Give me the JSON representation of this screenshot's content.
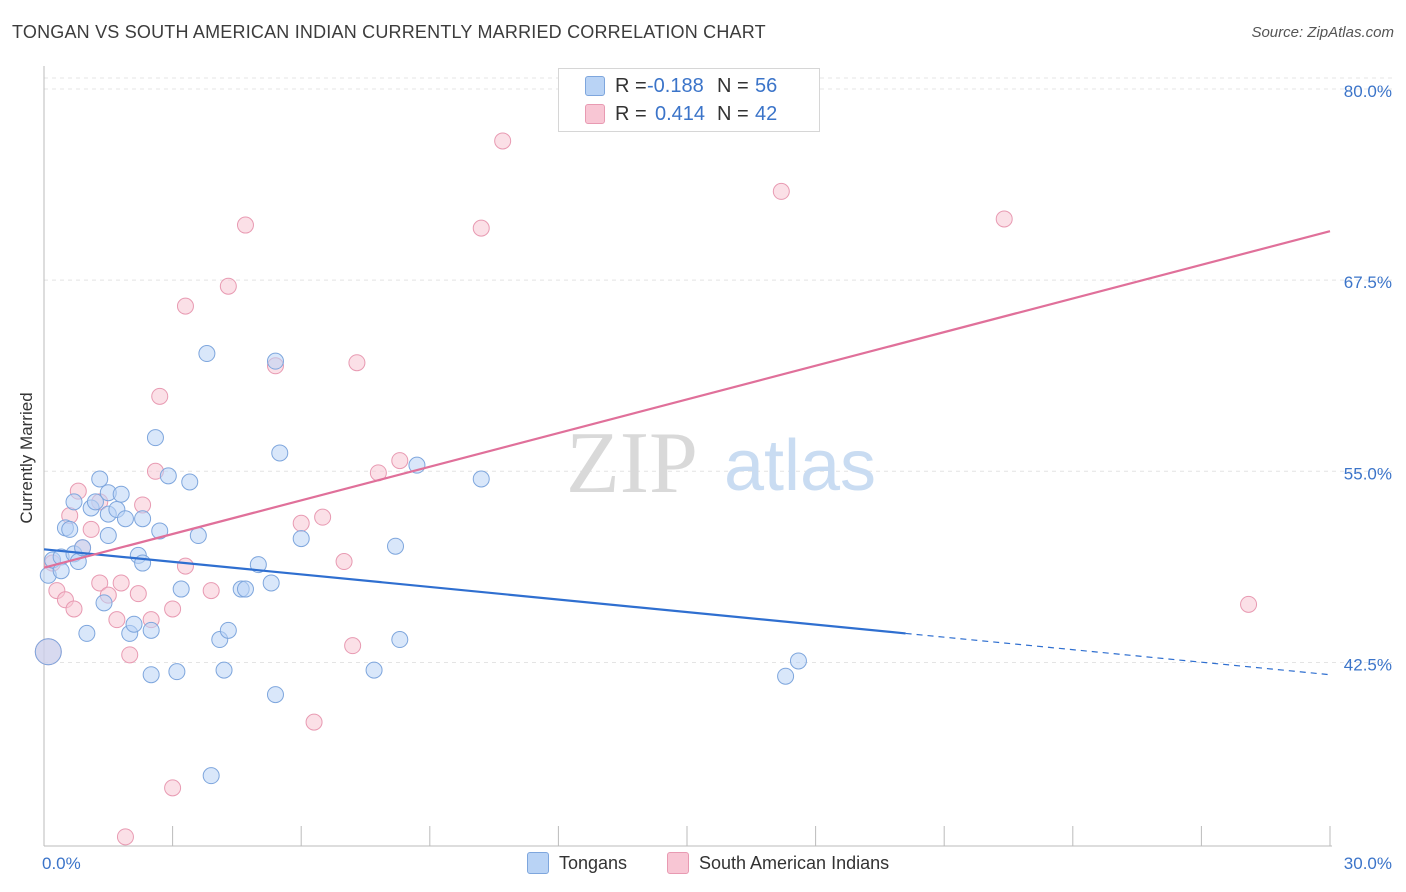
{
  "title": "TONGAN VS SOUTH AMERICAN INDIAN CURRENTLY MARRIED CORRELATION CHART",
  "source": "Source: ZipAtlas.com",
  "watermark": {
    "zip": "ZIP",
    "atlas": "atlas"
  },
  "legend": {
    "tongans": {
      "r_label": "R =",
      "r_value": "-0.188",
      "n_label": "N =",
      "n_value": "56"
    },
    "south_american": {
      "r_label": "R =",
      "r_value": "0.414",
      "n_label": "N =",
      "n_value": "42"
    }
  },
  "colors": {
    "blue_fill": "#b9d3f5",
    "blue_stroke": "#7ea6dd",
    "blue_line": "#2f6fd0",
    "pink_fill": "#f8c6d4",
    "pink_stroke": "#e89ab2",
    "pink_line": "#e0709a",
    "axis_text": "#3b74c9",
    "grid": "#e4e4e4"
  },
  "chart_data": {
    "type": "scatter",
    "title": "TONGAN VS SOUTH AMERICAN INDIAN CURRENTLY MARRIED CORRELATION CHART",
    "xlabel": "",
    "ylabel": "Currently Married",
    "xlim": [
      0,
      30
    ],
    "ylim": [
      30.5,
      81.5
    ],
    "x_tick_labels": [
      "0.0%",
      "30.0%"
    ],
    "y_ticks": [
      42.5,
      55.0,
      67.5,
      80.0
    ],
    "y_tick_labels": [
      "42.5%",
      "55.0%",
      "67.5%",
      "80.0%"
    ],
    "series": [
      {
        "name": "Tongans",
        "points": [
          [
            0.1,
            43.2
          ],
          [
            0.1,
            48.2
          ],
          [
            0.2,
            49.2
          ],
          [
            0.4,
            49.4
          ],
          [
            0.4,
            48.5
          ],
          [
            0.5,
            51.3
          ],
          [
            0.6,
            51.2
          ],
          [
            0.7,
            49.6
          ],
          [
            0.7,
            53.0
          ],
          [
            0.8,
            49.1
          ],
          [
            0.9,
            50.0
          ],
          [
            1.0,
            44.4
          ],
          [
            1.1,
            52.6
          ],
          [
            1.2,
            53.0
          ],
          [
            1.3,
            54.5
          ],
          [
            1.4,
            46.4
          ],
          [
            1.5,
            53.6
          ],
          [
            1.5,
            52.2
          ],
          [
            1.5,
            50.8
          ],
          [
            1.7,
            52.5
          ],
          [
            1.8,
            53.5
          ],
          [
            1.9,
            51.9
          ],
          [
            2.0,
            44.4
          ],
          [
            2.1,
            45.0
          ],
          [
            2.2,
            49.5
          ],
          [
            2.3,
            49.0
          ],
          [
            2.3,
            51.9
          ],
          [
            2.5,
            44.6
          ],
          [
            2.5,
            41.7
          ],
          [
            2.6,
            57.2
          ],
          [
            2.7,
            51.1
          ],
          [
            2.9,
            54.7
          ],
          [
            3.1,
            41.9
          ],
          [
            3.2,
            47.3
          ],
          [
            3.4,
            54.3
          ],
          [
            3.6,
            50.8
          ],
          [
            3.8,
            62.7
          ],
          [
            3.9,
            35.1
          ],
          [
            4.1,
            44.0
          ],
          [
            4.2,
            42.0
          ],
          [
            4.3,
            44.6
          ],
          [
            4.6,
            47.3
          ],
          [
            4.7,
            47.3
          ],
          [
            5.0,
            48.9
          ],
          [
            5.3,
            47.7
          ],
          [
            5.4,
            40.4
          ],
          [
            5.4,
            62.2
          ],
          [
            5.5,
            56.2
          ],
          [
            6.0,
            50.6
          ],
          [
            7.7,
            42.0
          ],
          [
            8.2,
            50.1
          ],
          [
            8.3,
            44.0
          ],
          [
            8.7,
            55.4
          ],
          [
            10.2,
            54.5
          ],
          [
            17.3,
            41.6
          ],
          [
            17.6,
            42.6
          ]
        ]
      },
      {
        "name": "South American Indians",
        "points": [
          [
            0.1,
            43.2
          ],
          [
            0.2,
            49.0
          ],
          [
            0.3,
            47.2
          ],
          [
            0.5,
            46.6
          ],
          [
            0.6,
            52.1
          ],
          [
            0.7,
            46.0
          ],
          [
            0.8,
            53.7
          ],
          [
            0.9,
            50.0
          ],
          [
            1.1,
            51.2
          ],
          [
            1.3,
            53.0
          ],
          [
            1.3,
            47.7
          ],
          [
            1.5,
            46.9
          ],
          [
            1.7,
            45.3
          ],
          [
            1.8,
            47.7
          ],
          [
            1.9,
            31.1
          ],
          [
            2.0,
            43.0
          ],
          [
            2.2,
            47.0
          ],
          [
            2.3,
            52.8
          ],
          [
            2.5,
            45.3
          ],
          [
            2.6,
            55.0
          ],
          [
            2.7,
            59.9
          ],
          [
            3.0,
            46.0
          ],
          [
            3.0,
            34.3
          ],
          [
            3.3,
            65.8
          ],
          [
            3.3,
            48.8
          ],
          [
            3.9,
            47.2
          ],
          [
            4.3,
            67.1
          ],
          [
            4.7,
            71.1
          ],
          [
            5.4,
            61.9
          ],
          [
            6.0,
            51.6
          ],
          [
            6.3,
            38.6
          ],
          [
            6.5,
            52.0
          ],
          [
            7.0,
            49.1
          ],
          [
            7.2,
            43.6
          ],
          [
            7.3,
            62.1
          ],
          [
            7.8,
            54.9
          ],
          [
            8.3,
            55.7
          ],
          [
            10.2,
            70.9
          ],
          [
            10.7,
            76.6
          ],
          [
            17.2,
            73.3
          ],
          [
            22.4,
            71.5
          ],
          [
            28.1,
            46.3
          ]
        ]
      }
    ],
    "trend_lines": [
      {
        "series": "Tongans",
        "x": [
          0,
          20.1
        ],
        "y": [
          49.9,
          44.4
        ],
        "dashed_extension": {
          "x": [
            20.1,
            30.0
          ],
          "y": [
            44.4,
            41.7
          ]
        }
      },
      {
        "series": "South American Indians",
        "x": [
          0,
          30.0
        ],
        "y": [
          48.7,
          70.7
        ]
      }
    ],
    "legend": [
      "Tongans",
      "South American Indians"
    ]
  }
}
